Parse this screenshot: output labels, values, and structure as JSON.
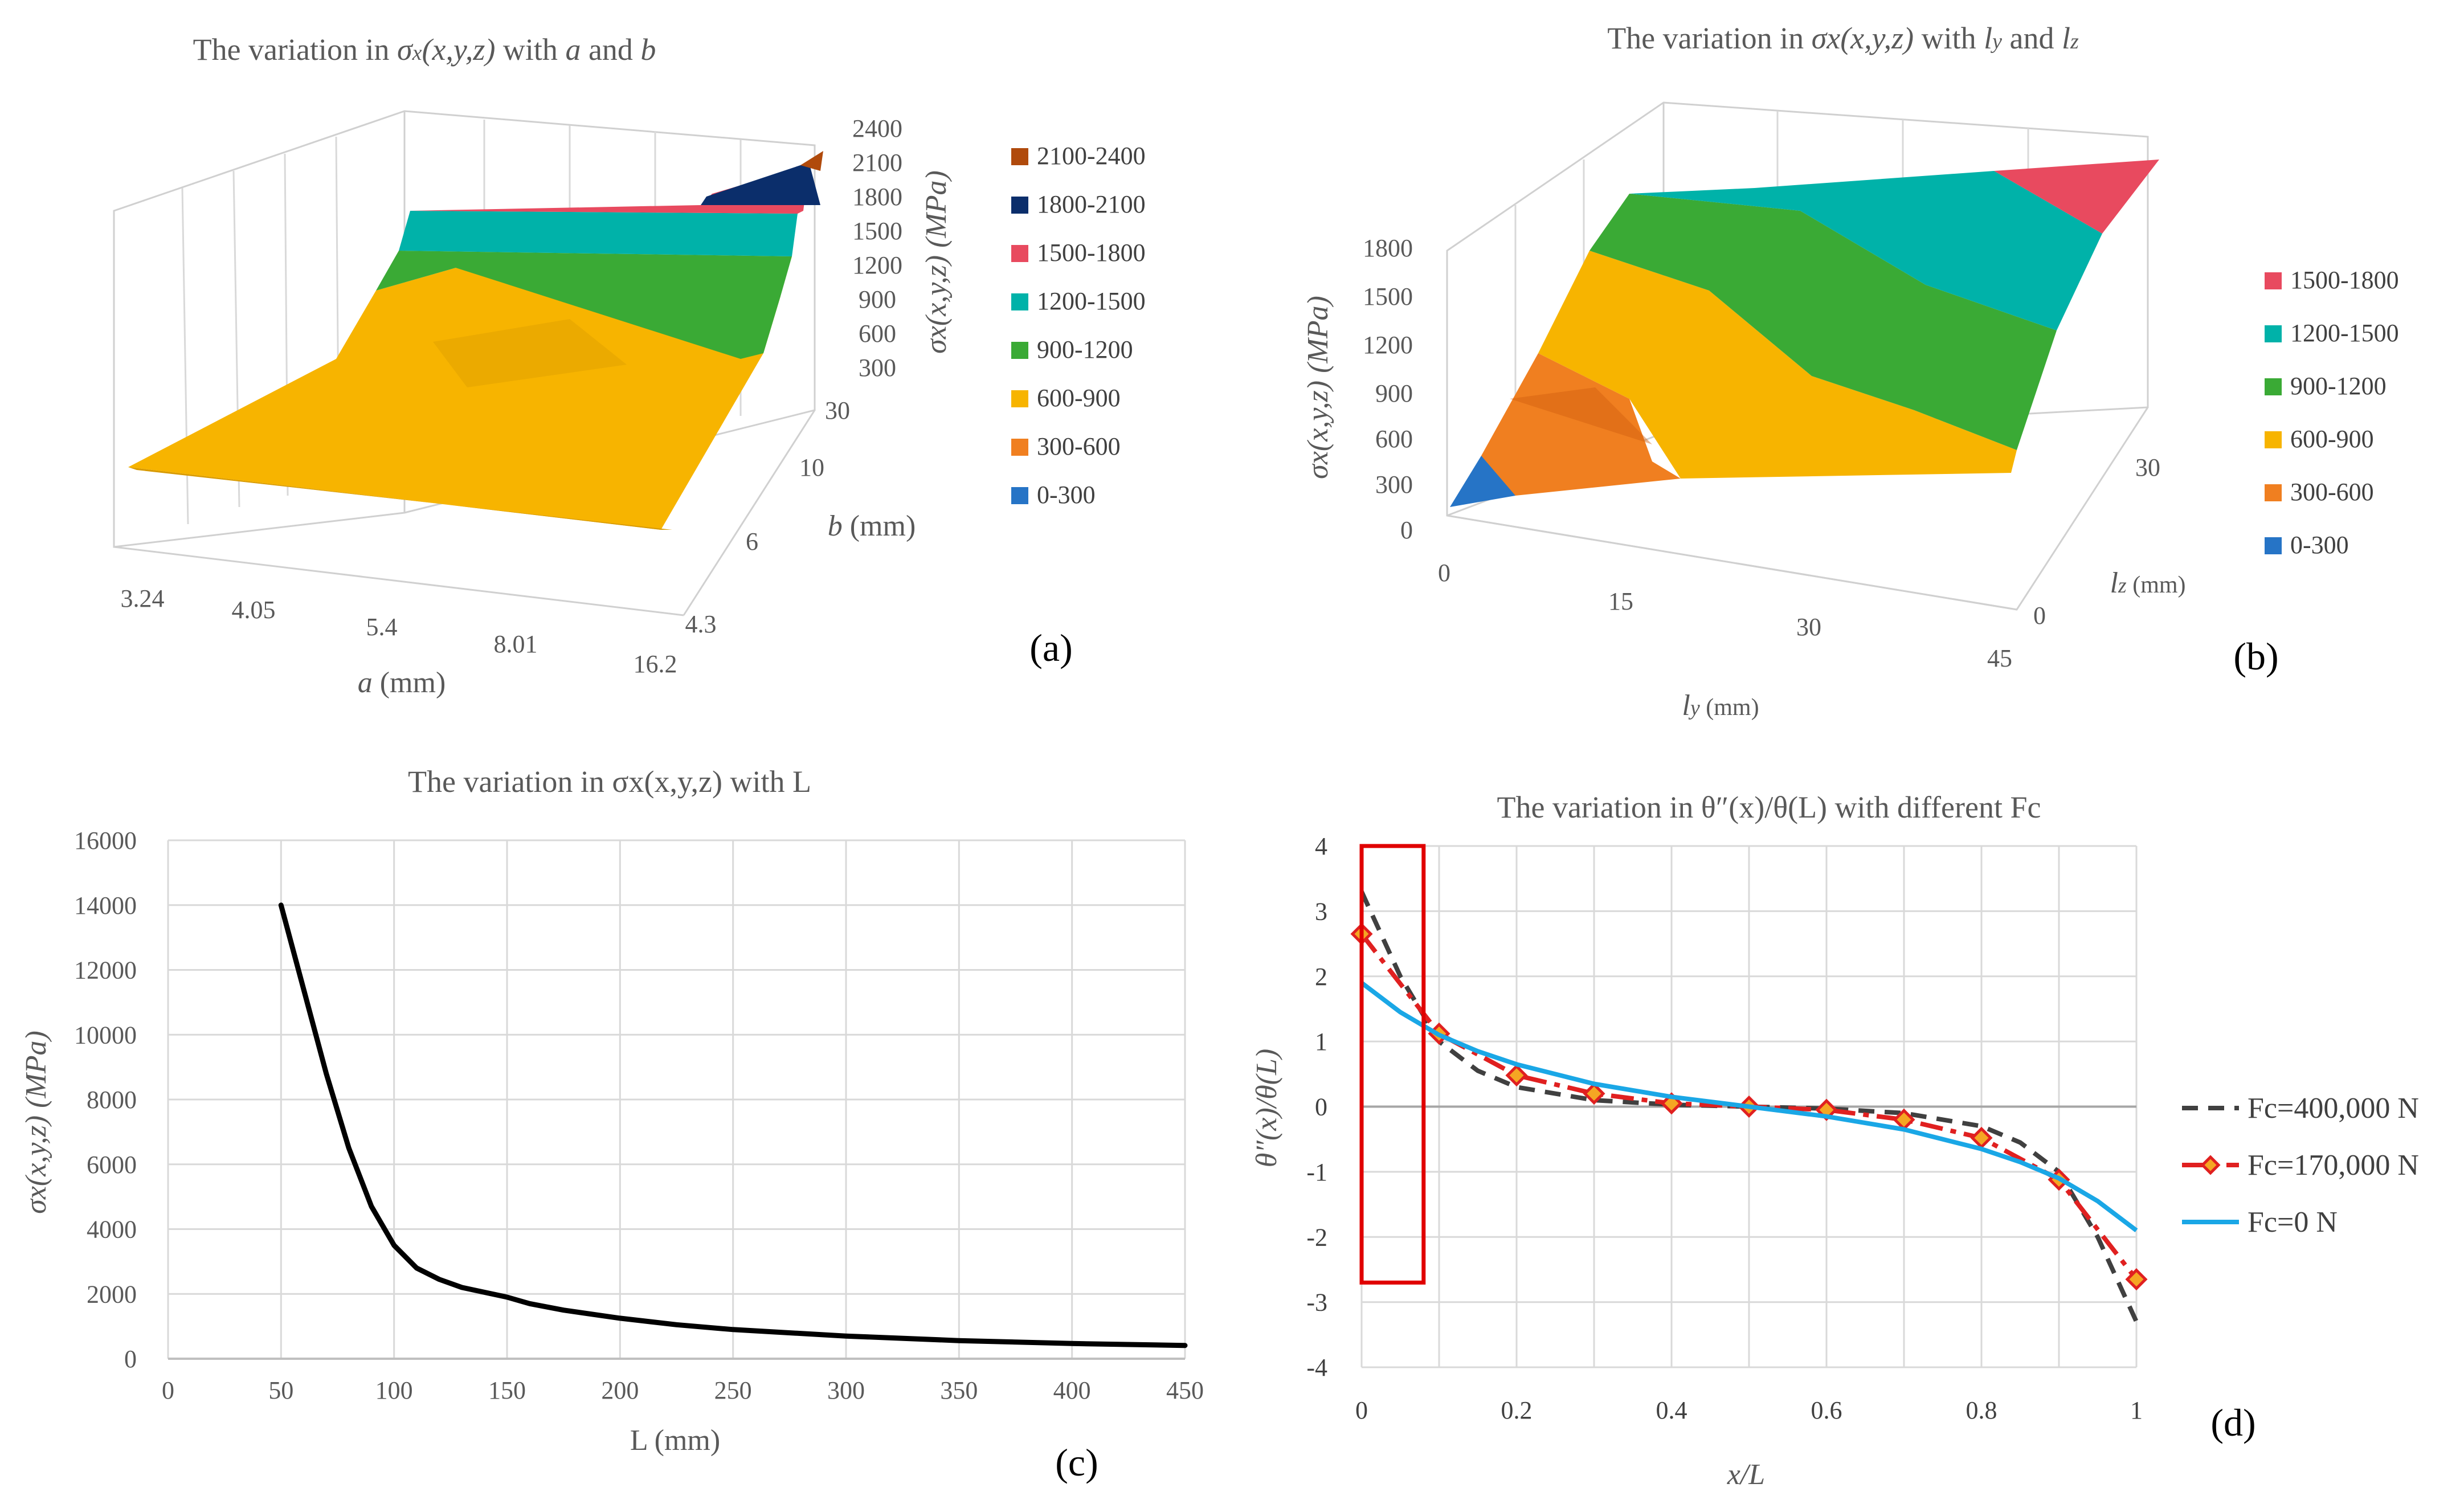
{
  "chart_data": [
    {
      "id": "a",
      "type": "surface3d",
      "title_prefix": "The variation in ",
      "title_sigma": "σ",
      "title_sub": "x",
      "title_xyz": "(x,y,z)",
      "title_mid": "  with ",
      "title_v1": "a",
      "title_and": " and ",
      "title_v2": "b",
      "x_label_var": "a",
      "x_label_unit": " (mm)",
      "x_ticks": [
        "3.24",
        "4.05",
        "5.4",
        "8.01",
        "16.2"
      ],
      "y_label_var": "b",
      "y_label_unit": " (mm)",
      "y_ticks": [
        "4.3",
        "6",
        "10",
        "30"
      ],
      "z_label": "σx(x,y,z) (MPa)",
      "z_ticks": [
        "300",
        "600",
        "900",
        "1200",
        "1500",
        "1800",
        "2100",
        "2400"
      ],
      "legend": [
        {
          "label": "2100-2400",
          "color": "#b04a0c"
        },
        {
          "label": "1800-2100",
          "color": "#0b2e6b"
        },
        {
          "label": "1500-1800",
          "color": "#e84a5f"
        },
        {
          "label": "1200-1500",
          "color": "#00b2a9"
        },
        {
          "label": "900-1200",
          "color": "#3aaa35"
        },
        {
          "label": "600-900",
          "color": "#f7b400"
        },
        {
          "label": "300-600",
          "color": "#f07f20"
        },
        {
          "label": "0-300",
          "color": "#2674c6"
        }
      ],
      "panel_label": "(a)"
    },
    {
      "id": "b",
      "type": "surface3d",
      "title_prefix": "The variation in ",
      "title_sigma": "σ",
      "title_sub": "x",
      "title_xyz": "(x,y,z)",
      "title_mid": "  with ",
      "title_v1": "l",
      "title_v1_sub": "y",
      "title_and": " and ",
      "title_v2": "l",
      "title_v2_sub": "z",
      "x_label_var": "l",
      "x_label_sub": "y",
      "x_label_unit": " (mm)",
      "x_ticks": [
        "0",
        "15",
        "30",
        "45"
      ],
      "y_label_var": "l",
      "y_label_sub": "z",
      "y_label_unit": " (mm)",
      "y_ticks": [
        "0",
        "30"
      ],
      "z_label": "σx(x,y,z) (MPa)",
      "z_ticks": [
        "0",
        "300",
        "600",
        "900",
        "1200",
        "1500",
        "1800"
      ],
      "legend": [
        {
          "label": "1500-1800",
          "color": "#e84a5f"
        },
        {
          "label": "1200-1500",
          "color": "#00b2a9"
        },
        {
          "label": "900-1200",
          "color": "#3aaa35"
        },
        {
          "label": "600-900",
          "color": "#f7b400"
        },
        {
          "label": "300-600",
          "color": "#f07f20"
        },
        {
          "label": "0-300",
          "color": "#2674c6"
        }
      ],
      "panel_label": "(b)"
    },
    {
      "id": "c",
      "type": "line",
      "title": "The variation in  σx(x,y,z)  with  L",
      "xlabel": "L (mm)",
      "ylabel": "σx(x,y,z) (MPa)",
      "xlim": [
        0,
        450
      ],
      "ylim": [
        0,
        16000
      ],
      "x_ticks": [
        0,
        50,
        100,
        150,
        200,
        250,
        300,
        350,
        400,
        450
      ],
      "y_ticks": [
        0,
        2000,
        4000,
        6000,
        8000,
        10000,
        12000,
        14000,
        16000
      ],
      "series": [
        {
          "name": "σx",
          "color": "#000000",
          "x": [
            50,
            60,
            70,
            80,
            90,
            100,
            110,
            120,
            130,
            140,
            150,
            160,
            175,
            200,
            225,
            250,
            300,
            350,
            400,
            450
          ],
          "y": [
            14000,
            11400,
            8800,
            6500,
            4700,
            3500,
            2800,
            2450,
            2200,
            2050,
            1900,
            1700,
            1500,
            1250,
            1050,
            900,
            700,
            560,
            470,
            410
          ]
        }
      ],
      "panel_label": "(c)"
    },
    {
      "id": "d",
      "type": "line",
      "title": "The variation in θ″(x)/θ(L) with different Fc",
      "xlabel": "x/L",
      "ylabel": "θ″(x)/θ(L)",
      "xlim": [
        0,
        1
      ],
      "ylim": [
        -4,
        4
      ],
      "x_ticks": [
        "0",
        "0.2",
        "0.4",
        "0.6",
        "0.8",
        "1"
      ],
      "y_ticks": [
        4,
        3,
        2,
        1,
        0,
        -1,
        -2,
        -3,
        -4
      ],
      "series": [
        {
          "name": "Fc=400,000 N",
          "color": "#404040",
          "style": "dashed",
          "x": [
            0,
            0.05,
            0.1,
            0.15,
            0.2,
            0.3,
            0.4,
            0.5,
            0.6,
            0.7,
            0.8,
            0.85,
            0.9,
            0.95,
            1
          ],
          "y": [
            3.3,
            2.0,
            1.0,
            0.55,
            0.3,
            0.1,
            0.03,
            0.0,
            -0.03,
            -0.1,
            -0.3,
            -0.55,
            -1.0,
            -2.0,
            -3.3
          ]
        },
        {
          "name": "Fc=170,000 N",
          "color": "#e02020",
          "marker_fill": "#f5a623",
          "style": "dashdot",
          "markers": true,
          "x": [
            0,
            0.1,
            0.2,
            0.3,
            0.4,
            0.5,
            0.6,
            0.7,
            0.8,
            0.9,
            1
          ],
          "y": [
            2.65,
            1.12,
            0.48,
            0.2,
            0.05,
            0.0,
            -0.05,
            -0.2,
            -0.48,
            -1.12,
            -2.65
          ]
        },
        {
          "name": "Fc=0 N",
          "color": "#1aa7e6",
          "style": "solid",
          "x": [
            0,
            0.05,
            0.1,
            0.15,
            0.2,
            0.3,
            0.4,
            0.5,
            0.6,
            0.7,
            0.8,
            0.85,
            0.9,
            0.95,
            1
          ],
          "y": [
            1.9,
            1.45,
            1.1,
            0.85,
            0.65,
            0.35,
            0.15,
            0.0,
            -0.15,
            -0.35,
            -0.65,
            -0.85,
            -1.1,
            -1.45,
            -1.9
          ]
        }
      ],
      "highlight_box": {
        "x0": 0,
        "x1": 0.08,
        "y0": -2.7,
        "y1": 4
      },
      "panel_label": "(d)"
    }
  ]
}
